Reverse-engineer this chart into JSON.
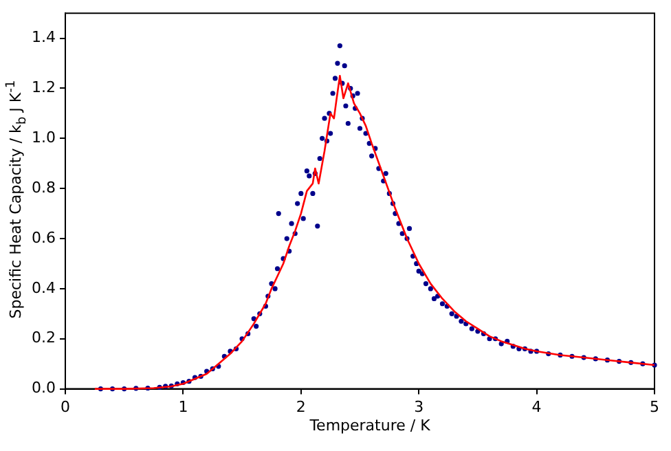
{
  "chart_data": {
    "type": "scatter",
    "xlabel": "Temperature / K",
    "ylabel": "Specific Heat Capacity / k$_{b}$ J K$^{-1}$",
    "xlim": [
      0,
      5
    ],
    "xticks": [
      0,
      1,
      2,
      3,
      4,
      5
    ],
    "ylim": [
      0,
      1.5
    ],
    "yticks": [
      {
        "value": 0,
        "label": "0.0"
      },
      {
        "value": 0.2,
        "label": "0.2"
      },
      {
        "value": 0.4,
        "label": "0.4"
      },
      {
        "value": 0.6,
        "label": "0.6"
      },
      {
        "value": 0.8,
        "label": "0.8"
      },
      {
        "value": 1,
        "label": "1.0"
      },
      {
        "value": 1.2,
        "label": "1.2"
      },
      {
        "value": 1.4,
        "label": "1.4"
      }
    ],
    "series": [
      {
        "marker": "circle",
        "color": "#00008b",
        "x": [
          0.3,
          0.4,
          0.5,
          0.6,
          0.7,
          0.8,
          0.85,
          0.9,
          0.95,
          1.0,
          1.05,
          1.1,
          1.15,
          1.2,
          1.25,
          1.3,
          1.35,
          1.4,
          1.45,
          1.5,
          1.55,
          1.6,
          1.62,
          1.65,
          1.7,
          1.72,
          1.75,
          1.78,
          1.8,
          1.81,
          1.85,
          1.88,
          1.9,
          1.92,
          1.95,
          1.97,
          2.0,
          2.02,
          2.05,
          2.07,
          2.1,
          2.12,
          2.14,
          2.16,
          2.18,
          2.2,
          2.22,
          2.24,
          2.25,
          2.27,
          2.29,
          2.31,
          2.33,
          2.35,
          2.37,
          2.38,
          2.4,
          2.42,
          2.44,
          2.46,
          2.48,
          2.5,
          2.52,
          2.55,
          2.58,
          2.6,
          2.63,
          2.66,
          2.7,
          2.72,
          2.75,
          2.78,
          2.8,
          2.83,
          2.86,
          2.9,
          2.92,
          2.95,
          2.98,
          3.0,
          3.03,
          3.06,
          3.1,
          3.13,
          3.16,
          3.2,
          3.24,
          3.28,
          3.32,
          3.36,
          3.4,
          3.45,
          3.5,
          3.55,
          3.6,
          3.65,
          3.7,
          3.75,
          3.8,
          3.85,
          3.9,
          3.95,
          4.0,
          4.1,
          4.2,
          4.3,
          4.4,
          4.5,
          4.6,
          4.7,
          4.8,
          4.9,
          5.0
        ],
        "values": [
          0,
          0,
          0,
          0.002,
          0.003,
          0.006,
          0.01,
          0.012,
          0.02,
          0.025,
          0.03,
          0.045,
          0.05,
          0.07,
          0.08,
          0.09,
          0.13,
          0.15,
          0.16,
          0.2,
          0.22,
          0.28,
          0.25,
          0.3,
          0.33,
          0.37,
          0.42,
          0.4,
          0.48,
          0.7,
          0.52,
          0.6,
          0.55,
          0.66,
          0.62,
          0.74,
          0.78,
          0.68,
          0.87,
          0.85,
          0.78,
          0.86,
          0.65,
          0.92,
          1.0,
          1.08,
          0.99,
          1.1,
          1.02,
          1.18,
          1.24,
          1.3,
          1.37,
          1.22,
          1.29,
          1.13,
          1.06,
          1.2,
          1.17,
          1.12,
          1.18,
          1.04,
          1.08,
          1.02,
          0.98,
          0.93,
          0.96,
          0.88,
          0.83,
          0.86,
          0.78,
          0.74,
          0.7,
          0.66,
          0.62,
          0.6,
          0.64,
          0.53,
          0.5,
          0.47,
          0.46,
          0.42,
          0.4,
          0.36,
          0.37,
          0.34,
          0.33,
          0.3,
          0.29,
          0.27,
          0.26,
          0.24,
          0.23,
          0.22,
          0.2,
          0.2,
          0.18,
          0.19,
          0.17,
          0.16,
          0.16,
          0.15,
          0.15,
          0.14,
          0.135,
          0.13,
          0.125,
          0.12,
          0.115,
          0.11,
          0.105,
          0.1,
          0.095
        ]
      },
      {
        "type": "line",
        "marker": "none",
        "color": "#ff0000",
        "x": [
          0.25,
          0.5,
          0.75,
          0.9,
          1.0,
          1.1,
          1.2,
          1.3,
          1.4,
          1.5,
          1.6,
          1.7,
          1.75,
          1.8,
          1.85,
          1.9,
          1.95,
          2.0,
          2.05,
          2.1,
          2.12,
          2.15,
          2.2,
          2.25,
          2.28,
          2.3,
          2.33,
          2.36,
          2.4,
          2.45,
          2.5,
          2.55,
          2.6,
          2.7,
          2.8,
          2.9,
          3.0,
          3.1,
          3.2,
          3.3,
          3.4,
          3.5,
          3.6,
          3.7,
          3.8,
          3.9,
          4.0,
          4.2,
          4.4,
          4.6,
          4.8,
          5.0
        ],
        "values": [
          0,
          0,
          0.003,
          0.01,
          0.02,
          0.04,
          0.06,
          0.1,
          0.14,
          0.19,
          0.26,
          0.34,
          0.4,
          0.45,
          0.5,
          0.57,
          0.63,
          0.7,
          0.79,
          0.82,
          0.88,
          0.82,
          0.95,
          1.1,
          1.08,
          1.15,
          1.25,
          1.16,
          1.22,
          1.14,
          1.1,
          1.05,
          0.98,
          0.85,
          0.72,
          0.6,
          0.5,
          0.42,
          0.36,
          0.31,
          0.27,
          0.24,
          0.21,
          0.19,
          0.175,
          0.16,
          0.15,
          0.135,
          0.125,
          0.115,
          0.105,
          0.095
        ]
      }
    ]
  }
}
